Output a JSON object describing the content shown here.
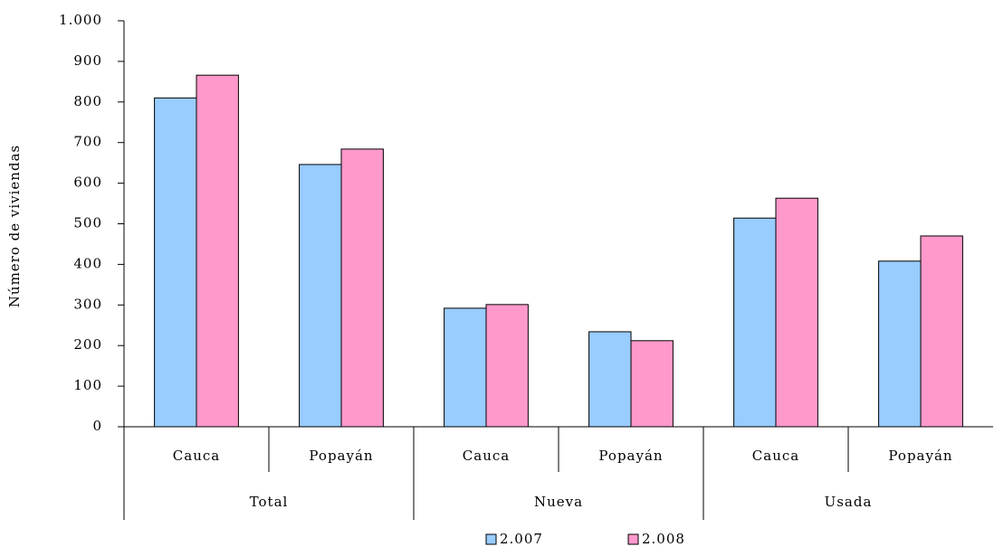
{
  "chart_data": {
    "type": "grouped-bar",
    "y_label": "Número de viviendas",
    "groups": [
      {
        "name": "Total",
        "categories": [
          "Cauca",
          "Popayán"
        ]
      },
      {
        "name": "Nueva",
        "categories": [
          "Cauca",
          "Popayán"
        ]
      },
      {
        "name": "Usada",
        "categories": [
          "Cauca",
          "Popayán"
        ]
      }
    ],
    "series": [
      {
        "name": "2.007",
        "color": "#99ccff",
        "values": [
          810,
          646,
          292,
          234,
          514,
          408
        ]
      },
      {
        "name": "2.008",
        "color": "#ff99cc",
        "values": [
          866,
          684,
          301,
          212,
          563,
          470
        ]
      }
    ],
    "ylim": [
      0,
      1000
    ],
    "yticks": [
      0,
      100,
      200,
      300,
      400,
      500,
      600,
      700,
      800,
      900,
      {
        "value": 1000,
        "label": "1.000"
      }
    ],
    "grid": false,
    "legend": "bottom"
  }
}
